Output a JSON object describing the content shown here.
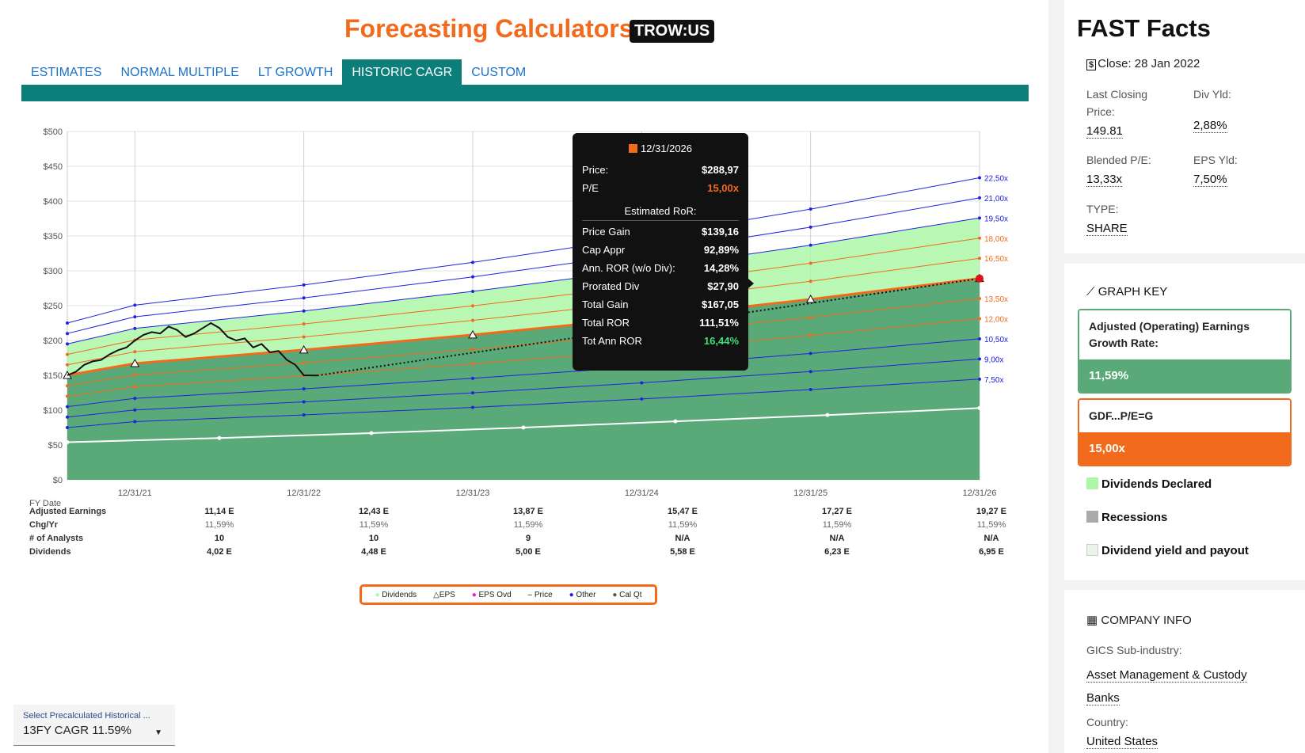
{
  "header": {
    "title": "Forecasting Calculators",
    "ticker": "TROW:US"
  },
  "tabs": [
    "ESTIMATES",
    "NORMAL MULTIPLE",
    "LT GROWTH",
    "HISTORIC CAGR",
    "CUSTOM"
  ],
  "active_tab": 3,
  "chart_data": {
    "type": "area",
    "y_ticks": [
      "$500",
      "$450",
      "$400",
      "$350",
      "$300",
      "$250",
      "$200",
      "$150",
      "$100",
      "$50",
      "$0"
    ],
    "ylim": [
      0,
      500
    ],
    "x_labels": [
      "12/31/21",
      "12/31/22",
      "12/31/23",
      "12/31/24",
      "12/31/25",
      "12/31/26"
    ],
    "xlabel": "FY Date",
    "pe_multiples": [
      "22,50x",
      "21,00x",
      "19,50x",
      "18,00x",
      "16,50x",
      "13,50x",
      "12,00x",
      "10,50x",
      "9,00x",
      "7,50x"
    ],
    "pe_values": [
      22.5,
      21,
      19.5,
      18,
      16.5,
      13.5,
      12,
      10.5,
      9,
      7.5
    ],
    "pe_colors": [
      "#2121e0",
      "#2121e0",
      "#2121e0",
      "#f26b1d",
      "#f26b1d",
      "#f26b1d",
      "#f26b1d",
      "#2121e0",
      "#2121e0",
      "#2121e0"
    ],
    "eps_x": [
      2021,
      2022,
      2023,
      2024,
      2025,
      2026
    ],
    "eps_start": [
      2020.6,
      10.0
    ],
    "eps": [
      11.14,
      12.43,
      13.87,
      15.47,
      17.27,
      19.27
    ],
    "dividends_line": [
      54,
      60,
      67,
      75,
      84,
      93,
      103
    ],
    "graph_pe": 15,
    "div_band_pe": 19.5,
    "price_series": [
      [
        2020.6,
        150
      ],
      [
        2020.65,
        155
      ],
      [
        2020.7,
        165
      ],
      [
        2020.75,
        170
      ],
      [
        2020.8,
        172
      ],
      [
        2020.85,
        180
      ],
      [
        2020.9,
        186
      ],
      [
        2020.95,
        190
      ],
      [
        2021.0,
        200
      ],
      [
        2021.05,
        208
      ],
      [
        2021.1,
        212
      ],
      [
        2021.15,
        210
      ],
      [
        2021.2,
        220
      ],
      [
        2021.25,
        215
      ],
      [
        2021.3,
        205
      ],
      [
        2021.35,
        210
      ],
      [
        2021.45,
        225
      ],
      [
        2021.5,
        218
      ],
      [
        2021.55,
        205
      ],
      [
        2021.6,
        200
      ],
      [
        2021.65,
        203
      ],
      [
        2021.7,
        190
      ],
      [
        2021.75,
        195
      ],
      [
        2021.8,
        183
      ],
      [
        2021.85,
        185
      ],
      [
        2021.9,
        172
      ],
      [
        2021.95,
        165
      ],
      [
        2022.0,
        150
      ],
      [
        2022.08,
        149.81
      ]
    ],
    "forecast_line": [
      [
        2022.08,
        149.81
      ],
      [
        2026,
        288.97
      ]
    ]
  },
  "table": {
    "rows": [
      {
        "label": "Adjusted Earnings",
        "values": [
          "11,14 E",
          "12,43 E",
          "13,87 E",
          "15,47 E",
          "17,27 E",
          "19,27 E"
        ]
      },
      {
        "label": "Chg/Yr",
        "values": [
          "11,59%",
          "11,59%",
          "11,59%",
          "11,59%",
          "11,59%",
          "11,59%"
        ]
      },
      {
        "label": "# of Analysts",
        "values": [
          "10",
          "10",
          "9",
          "N/A",
          "N/A",
          "N/A"
        ]
      },
      {
        "label": "Dividends",
        "values": [
          "4,02 E",
          "4,48 E",
          "5,00 E",
          "5,58 E",
          "6,23 E",
          "6,95 E"
        ]
      }
    ]
  },
  "legend": [
    "Dividends",
    "EPS",
    "EPS Ovd",
    "Price",
    "Other",
    "Cal Qt"
  ],
  "tooltip": {
    "date": "12/31/2026",
    "price_label": "Price:",
    "price": "$288,97",
    "pe_label": "P/E",
    "pe": "15,00x",
    "section": "Estimated RoR:",
    "rows": [
      {
        "label": "Price Gain",
        "value": "$139,16"
      },
      {
        "label": "Cap Appr",
        "value": "92,89%"
      },
      {
        "label": "Ann. ROR (w/o Div):",
        "value": "14,28%"
      },
      {
        "label": "Prorated Div",
        "value": "$27,90"
      },
      {
        "label": "Total Gain",
        "value": "$167,05"
      },
      {
        "label": "Total ROR",
        "value": "111,51%"
      },
      {
        "label": "Tot Ann ROR",
        "value": "16,44%"
      }
    ]
  },
  "select": {
    "label": "Select Precalculated Historical ...",
    "value": "13FY CAGR 11.59%"
  },
  "fast_facts": {
    "title": "FAST Facts",
    "close": "Close: 28 Jan 2022",
    "last_closing_label": "Last Closing Price:",
    "last_closing": "149.81",
    "div_yld_label": "Div Yld:",
    "div_yld": "2,88%",
    "blended_pe_label": "Blended P/E:",
    "blended_pe": "13,33x",
    "eps_yld_label": "EPS Yld:",
    "eps_yld": "7,50%",
    "type_label": "TYPE:",
    "type": "SHARE"
  },
  "graph_key": {
    "title": "GRAPH KEY",
    "growth_label": "Adjusted (Operating) Earnings Growth Rate:",
    "growth_value": "11,59%",
    "gdf_label": "GDF...P/E=G",
    "gdf_value": "15,00x",
    "items": [
      "Dividends Declared",
      "Recessions",
      "Dividend yield and payout"
    ],
    "colors": {
      "green": "#5aa978",
      "orange": "#f26b1d",
      "div": "#aef7a8",
      "recess": "#aaaaaa",
      "yield": "#e9f5e6"
    }
  },
  "company_info": {
    "title": "COMPANY INFO",
    "gics_label": "GICS Sub-industry:",
    "gics": "Asset Management & Custody Banks",
    "country_label": "Country:",
    "country": "United States"
  }
}
